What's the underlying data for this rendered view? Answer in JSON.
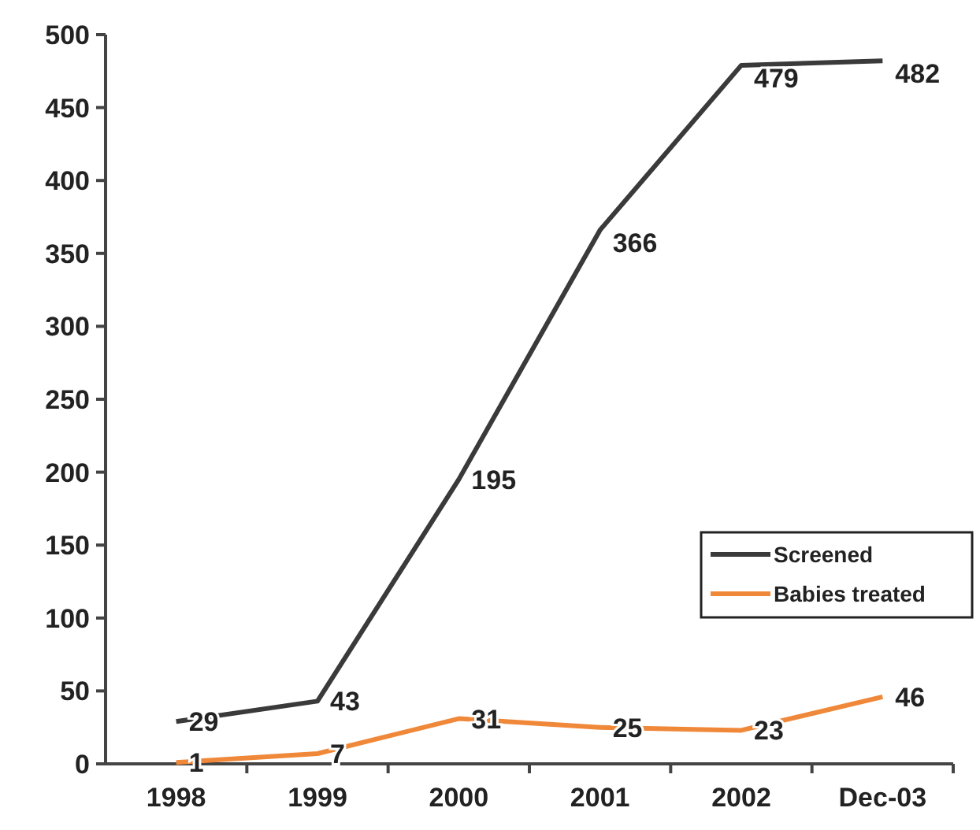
{
  "chart_data": {
    "type": "line",
    "categories": [
      "1998",
      "1999",
      "2000",
      "2001",
      "2002",
      "Dec-03"
    ],
    "series": [
      {
        "name": "Screened",
        "color": "#3a3a3a",
        "values": [
          29,
          43,
          195,
          366,
          479,
          482
        ]
      },
      {
        "name": "Babies treated",
        "color": "#f0883a",
        "values": [
          1,
          7,
          31,
          25,
          23,
          46
        ]
      }
    ],
    "ylim": [
      0,
      500
    ],
    "yticks": [
      0,
      50,
      100,
      150,
      200,
      250,
      300,
      350,
      400,
      450,
      500
    ],
    "data_labels": true,
    "legend": "right",
    "grid": false,
    "marker": "none",
    "line_style": "solid"
  }
}
